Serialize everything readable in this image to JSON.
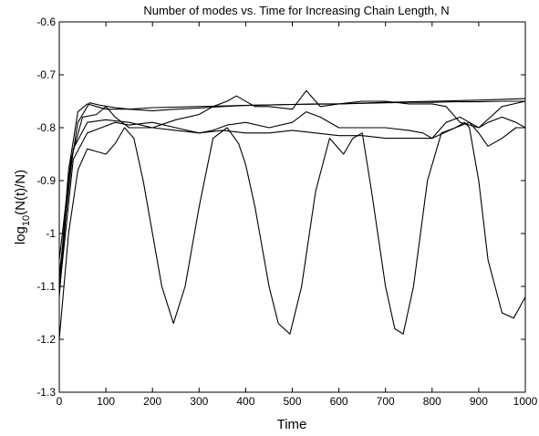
{
  "chart_data": {
    "type": "line",
    "title": "Number of modes vs. Time for Increasing Chain Length, N",
    "xlabel": "Time",
    "ylabel_prefix": "log",
    "ylabel_sub": "10",
    "ylabel_suffix": "(N(t)/N)",
    "xlim": [
      0,
      1000
    ],
    "ylim": [
      -1.3,
      -0.6
    ],
    "xticks": [
      0,
      100,
      200,
      300,
      400,
      500,
      600,
      700,
      800,
      900,
      1000
    ],
    "yticks": [
      -1.3,
      -1.2,
      -1.1,
      -1.0,
      -0.9,
      -0.8,
      -0.7,
      -0.6
    ],
    "xtick_labels": [
      "0",
      "100",
      "200",
      "300",
      "400",
      "500",
      "600",
      "700",
      "800",
      "900",
      "1000"
    ],
    "ytick_labels": [
      "-1.3",
      "-1.2",
      "-1.1",
      "-1",
      "-0.9",
      "-0.8",
      "-0.7",
      "-0.6"
    ],
    "grid": false,
    "series": [
      {
        "x": [
          0,
          20,
          40,
          60,
          80,
          100,
          120,
          140,
          160,
          180,
          200,
          220,
          245,
          270,
          300,
          330,
          360,
          385,
          400,
          420,
          450,
          470,
          495,
          520,
          550,
          580,
          610,
          630,
          650,
          670,
          700,
          720,
          738,
          760,
          790,
          820,
          850,
          870,
          880,
          900,
          920,
          950,
          975,
          1000
        ],
        "y": [
          -1.2,
          -1.0,
          -0.88,
          -0.84,
          -0.845,
          -0.85,
          -0.83,
          -0.8,
          -0.82,
          -0.9,
          -1.0,
          -1.1,
          -1.17,
          -1.1,
          -0.95,
          -0.82,
          -0.8,
          -0.83,
          -0.87,
          -0.95,
          -1.1,
          -1.17,
          -1.19,
          -1.1,
          -0.92,
          -0.82,
          -0.85,
          -0.82,
          -0.81,
          -0.92,
          -1.1,
          -1.18,
          -1.19,
          -1.1,
          -0.9,
          -0.81,
          -0.8,
          -0.79,
          -0.8,
          -0.9,
          -1.05,
          -1.15,
          -1.16,
          -1.12
        ]
      },
      {
        "x": [
          0,
          20,
          40,
          60,
          80,
          100,
          150,
          200,
          300,
          400,
          500,
          600,
          700,
          800,
          900,
          1000
        ],
        "y": [
          -1.1,
          -0.88,
          -0.77,
          -0.755,
          -0.76,
          -0.765,
          -0.765,
          -0.762,
          -0.76,
          -0.758,
          -0.756,
          -0.755,
          -0.752,
          -0.75,
          -0.748,
          -0.745
        ]
      },
      {
        "x": [
          0,
          20,
          40,
          65,
          90,
          120,
          150,
          200,
          250,
          300,
          350,
          400,
          450,
          500,
          550,
          600,
          650,
          700,
          750,
          800,
          850,
          900,
          950,
          1000
        ],
        "y": [
          -1.12,
          -0.9,
          -0.79,
          -0.753,
          -0.758,
          -0.762,
          -0.765,
          -0.768,
          -0.765,
          -0.763,
          -0.76,
          -0.758,
          -0.757,
          -0.756,
          -0.755,
          -0.755,
          -0.754,
          -0.753,
          -0.752,
          -0.752,
          -0.751,
          -0.751,
          -0.75,
          -0.75
        ]
      },
      {
        "x": [
          0,
          25,
          50,
          80,
          100,
          120,
          150,
          200,
          250,
          300,
          330,
          360,
          380,
          420,
          450,
          500,
          530,
          560,
          600,
          650,
          700,
          750,
          800,
          830,
          860,
          900,
          950,
          1000
        ],
        "y": [
          -1.05,
          -0.86,
          -0.78,
          -0.775,
          -0.76,
          -0.78,
          -0.8,
          -0.8,
          -0.785,
          -0.775,
          -0.76,
          -0.75,
          -0.74,
          -0.76,
          -0.76,
          -0.765,
          -0.73,
          -0.76,
          -0.755,
          -0.75,
          -0.75,
          -0.755,
          -0.755,
          -0.76,
          -0.79,
          -0.8,
          -0.76,
          -0.75
        ]
      },
      {
        "x": [
          0,
          30,
          60,
          90,
          120,
          150,
          200,
          250,
          300,
          330,
          360,
          400,
          450,
          500,
          530,
          560,
          600,
          650,
          700,
          750,
          780,
          800,
          830,
          860,
          880,
          900,
          920,
          950,
          980,
          1000
        ],
        "y": [
          -1.11,
          -0.86,
          -0.81,
          -0.8,
          -0.79,
          -0.795,
          -0.79,
          -0.8,
          -0.81,
          -0.805,
          -0.795,
          -0.79,
          -0.8,
          -0.79,
          -0.77,
          -0.78,
          -0.8,
          -0.8,
          -0.8,
          -0.805,
          -0.81,
          -0.82,
          -0.79,
          -0.78,
          -0.79,
          -0.8,
          -0.79,
          -0.78,
          -0.79,
          -0.8
        ]
      },
      {
        "x": [
          0,
          30,
          60,
          100,
          150,
          200,
          250,
          300,
          350,
          400,
          450,
          500,
          550,
          600,
          650,
          700,
          750,
          800,
          850,
          880,
          900,
          920,
          950,
          980,
          1000
        ],
        "y": [
          -1.08,
          -0.84,
          -0.79,
          -0.785,
          -0.79,
          -0.8,
          -0.805,
          -0.81,
          -0.805,
          -0.81,
          -0.81,
          -0.805,
          -0.81,
          -0.815,
          -0.815,
          -0.82,
          -0.82,
          -0.82,
          -0.8,
          -0.79,
          -0.81,
          -0.835,
          -0.82,
          -0.8,
          -0.8
        ]
      }
    ]
  }
}
